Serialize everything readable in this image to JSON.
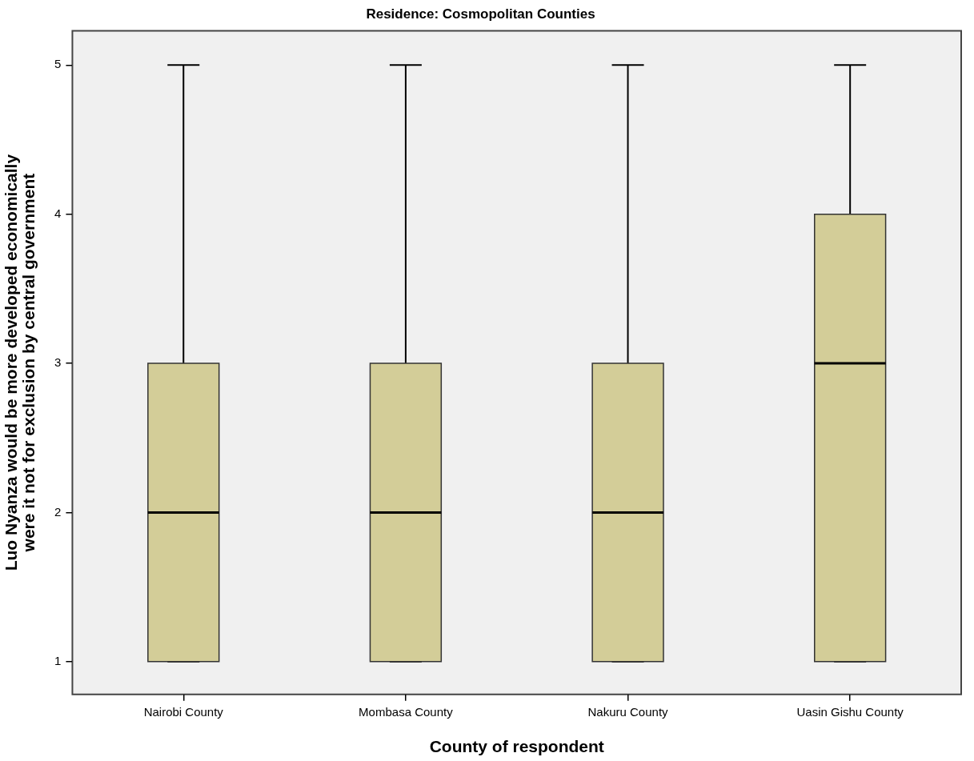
{
  "chart_data": {
    "type": "box",
    "title": "Residence: Cosmopolitan Counties",
    "xlabel": "County of respondent",
    "ylabel": "Luo Nyanza would be more developed economically\nwere it not for exclusion by central government",
    "categories": [
      "Nairobi County",
      "Mombasa County",
      "Nakuru County",
      "Uasin Gishu County"
    ],
    "color": "#d3cd98",
    "boxes": [
      {
        "low": 1,
        "q1": 1,
        "median": 2,
        "q3": 3,
        "high": 5
      },
      {
        "low": 1,
        "q1": 1,
        "median": 2,
        "q3": 3,
        "high": 5
      },
      {
        "low": 1,
        "q1": 1,
        "median": 2,
        "q3": 3,
        "high": 5
      },
      {
        "low": 1,
        "q1": 1,
        "median": 3,
        "q3": 4,
        "high": 5
      }
    ],
    "ylim": [
      0.78,
      5.23
    ],
    "yticks": [
      1,
      2,
      3,
      4,
      5
    ],
    "grid": false,
    "legend": false
  }
}
